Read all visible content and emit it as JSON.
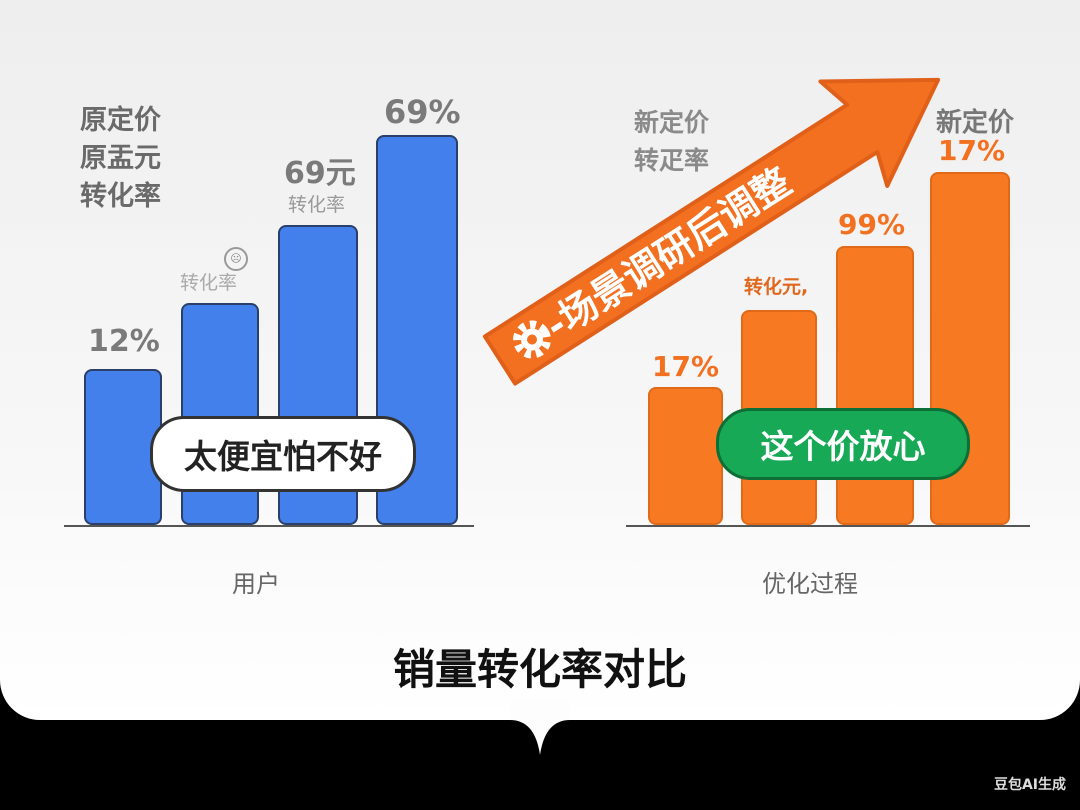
{
  "chart_data": [
    {
      "type": "bar",
      "xlabel": "用户",
      "colors": [
        "#4480ec"
      ],
      "values": [
        40,
        57,
        77,
        100
      ],
      "ylim": [
        0,
        100
      ],
      "bar_labels": [
        "12%",
        "",
        "69元",
        "69%"
      ],
      "annotations": {
        "legend_lines": [
          "原定价",
          "原盂元",
          "转化率"
        ],
        "note_bar2": "转化率",
        "note_bar3": "转化率",
        "bubble": "太便宜怕不好"
      }
    },
    {
      "type": "bar",
      "xlabel": "优化过程",
      "colors": [
        "#f77a22"
      ],
      "values": [
        39,
        61,
        79,
        100
      ],
      "ylim": [
        0,
        100
      ],
      "bar_labels": [
        "17%",
        "转化元,",
        "99%",
        "17%"
      ],
      "annotations": {
        "legend_lines": [
          "新定价",
          "转疋率"
        ],
        "top_label": "新定价",
        "arrow": "-场景调研后调整",
        "bubble": "这个价放心"
      }
    }
  ],
  "title": "销量转化率对比",
  "watermark": "豆包AI生成",
  "icons": {
    "arrow_icon": "gear-icon",
    "emoji": "sad-face-icon"
  }
}
